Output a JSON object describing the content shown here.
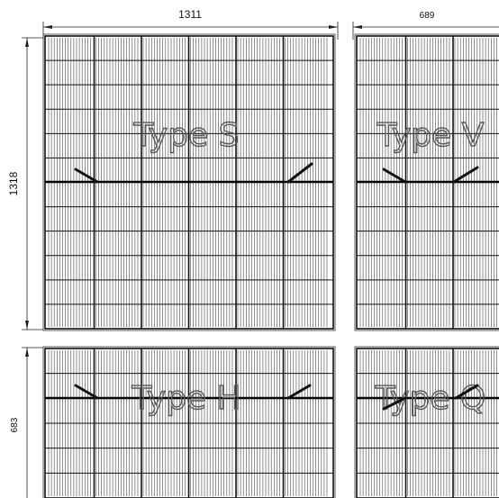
{
  "dimensions": {
    "width_full": "1311",
    "width_half": "689",
    "height_full": "1318",
    "height_half": "683"
  },
  "panels": [
    {
      "id": "type-s",
      "label": "Type S"
    },
    {
      "id": "type-v",
      "label": "Type V"
    },
    {
      "id": "type-h",
      "label": "Type H"
    },
    {
      "id": "type-q",
      "label": "Type Q"
    }
  ]
}
